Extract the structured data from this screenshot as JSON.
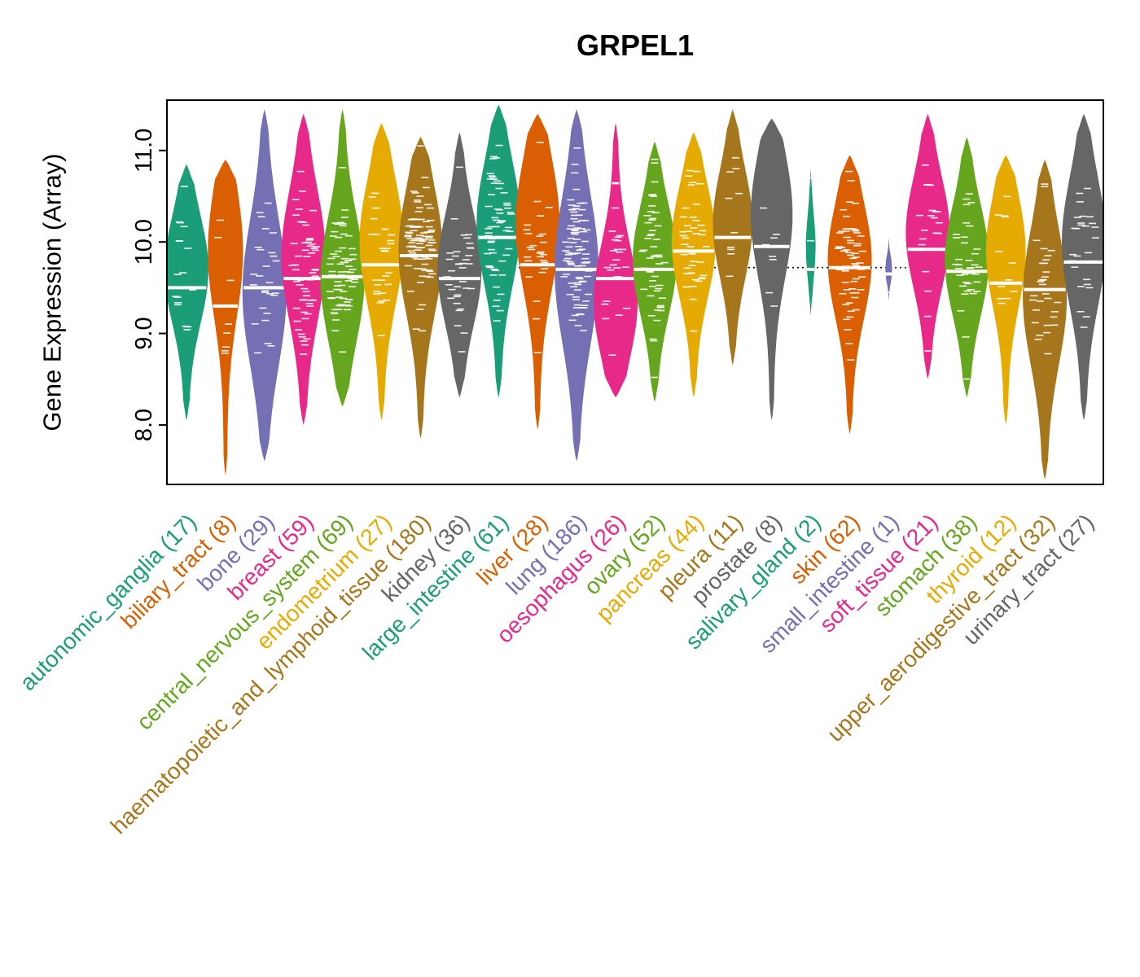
{
  "chart_data": {
    "type": "violin",
    "title": "GRPEL1",
    "ylabel": "Gene Expression (Array)",
    "xlabel": "",
    "ylim": [
      7.35,
      11.55
    ],
    "grid": false,
    "reference_line": 9.72,
    "reference_line_style": "dotted",
    "palette": [
      "#1B9E77",
      "#D95F02",
      "#7570B3",
      "#E7298A",
      "#66A61E",
      "#E6AB02",
      "#A6761D",
      "#666666"
    ],
    "yticks": [
      {
        "value": 8.0,
        "label": "8.0"
      },
      {
        "value": 9.0,
        "label": "9.0"
      },
      {
        "value": 10.0,
        "label": "10.0"
      },
      {
        "value": 11.0,
        "label": "11.0"
      }
    ],
    "categories": [
      {
        "label": "autonomic_ganglia",
        "n": 17,
        "color": "#1B9E77",
        "median": 9.5,
        "min": 8.05,
        "max": 10.85,
        "bulge": 9.7,
        "width": 1
      },
      {
        "label": "biliary_tract",
        "n": 8,
        "color": "#D95F02",
        "median": 9.3,
        "min": 7.45,
        "max": 10.9,
        "bulge": 9.9,
        "width": 0.8
      },
      {
        "label": "bone",
        "n": 29,
        "color": "#7570B3",
        "median": 9.5,
        "min": 7.6,
        "max": 11.45,
        "bulge": 9.45,
        "width": 1
      },
      {
        "label": "breast",
        "n": 59,
        "color": "#E7298A",
        "median": 9.6,
        "min": 8.0,
        "max": 11.4,
        "bulge": 9.85,
        "width": 1
      },
      {
        "label": "central_nervous_system",
        "n": 69,
        "color": "#66A61E",
        "median": 9.62,
        "min": 8.2,
        "max": 11.45,
        "bulge": 9.6,
        "width": 1
      },
      {
        "label": "endometrium",
        "n": 27,
        "color": "#E6AB02",
        "median": 9.75,
        "min": 8.05,
        "max": 11.3,
        "bulge": 10.0,
        "width": 1
      },
      {
        "label": "haematopoietic_and_lymphoid_tissue",
        "n": 180,
        "color": "#A6761D",
        "median": 9.85,
        "min": 7.85,
        "max": 11.15,
        "bulge": 9.9,
        "width": 1
      },
      {
        "label": "kidney",
        "n": 36,
        "color": "#666666",
        "median": 9.6,
        "min": 8.3,
        "max": 11.2,
        "bulge": 9.7,
        "width": 1
      },
      {
        "label": "large_intestine",
        "n": 61,
        "color": "#1B9E77",
        "median": 10.05,
        "min": 8.3,
        "max": 11.5,
        "bulge": 10.2,
        "width": 1
      },
      {
        "label": "liver",
        "n": 28,
        "color": "#D95F02",
        "median": 9.75,
        "min": 7.95,
        "max": 11.4,
        "bulge": 10.2,
        "width": 1
      },
      {
        "label": "lung",
        "n": 186,
        "color": "#7570B3",
        "median": 9.7,
        "min": 7.6,
        "max": 11.45,
        "bulge": 9.7,
        "width": 1
      },
      {
        "label": "oesophagus",
        "n": 26,
        "color": "#E7298A",
        "median": 9.6,
        "min": 8.3,
        "max": 11.3,
        "bulge": 9.35,
        "width": 1
      },
      {
        "label": "ovary",
        "n": 52,
        "color": "#66A61E",
        "median": 9.7,
        "min": 8.25,
        "max": 11.1,
        "bulge": 9.8,
        "width": 1
      },
      {
        "label": "pancreas",
        "n": 44,
        "color": "#E6AB02",
        "median": 9.9,
        "min": 8.3,
        "max": 11.2,
        "bulge": 10.0,
        "width": 1
      },
      {
        "label": "pleura",
        "n": 11,
        "color": "#A6761D",
        "median": 10.05,
        "min": 8.65,
        "max": 11.45,
        "bulge": 10.2,
        "width": 0.9
      },
      {
        "label": "prostate",
        "n": 8,
        "color": "#666666",
        "median": 9.95,
        "min": 8.05,
        "max": 11.35,
        "bulge": 10.3,
        "width": 0.95
      },
      {
        "label": "salivary_gland",
        "n": 2,
        "color": "#1B9E77",
        "median": 9.7,
        "min": 9.2,
        "max": 10.8,
        "bulge": 9.95,
        "width": 0.22
      },
      {
        "label": "skin",
        "n": 62,
        "color": "#D95F02",
        "median": 9.72,
        "min": 7.9,
        "max": 10.95,
        "bulge": 9.8,
        "width": 1
      },
      {
        "label": "small_intestine",
        "n": 1,
        "color": "#7570B3",
        "median": 9.65,
        "min": 9.35,
        "max": 10.05,
        "bulge": 9.7,
        "width": 0.15
      },
      {
        "label": "soft_tissue",
        "n": 21,
        "color": "#E7298A",
        "median": 9.92,
        "min": 8.5,
        "max": 11.4,
        "bulge": 10.1,
        "width": 1
      },
      {
        "label": "stomach",
        "n": 38,
        "color": "#66A61E",
        "median": 9.68,
        "min": 8.3,
        "max": 11.15,
        "bulge": 9.8,
        "width": 1
      },
      {
        "label": "thyroid",
        "n": 12,
        "color": "#E6AB02",
        "median": 9.55,
        "min": 8.0,
        "max": 10.95,
        "bulge": 9.9,
        "width": 0.9
      },
      {
        "label": "upper_aerodigestive_tract",
        "n": 32,
        "color": "#A6761D",
        "median": 9.48,
        "min": 7.4,
        "max": 10.9,
        "bulge": 9.4,
        "width": 1
      },
      {
        "label": "urinary_tract",
        "n": 27,
        "color": "#666666",
        "median": 9.78,
        "min": 8.05,
        "max": 11.4,
        "bulge": 10.0,
        "width": 1
      }
    ]
  }
}
